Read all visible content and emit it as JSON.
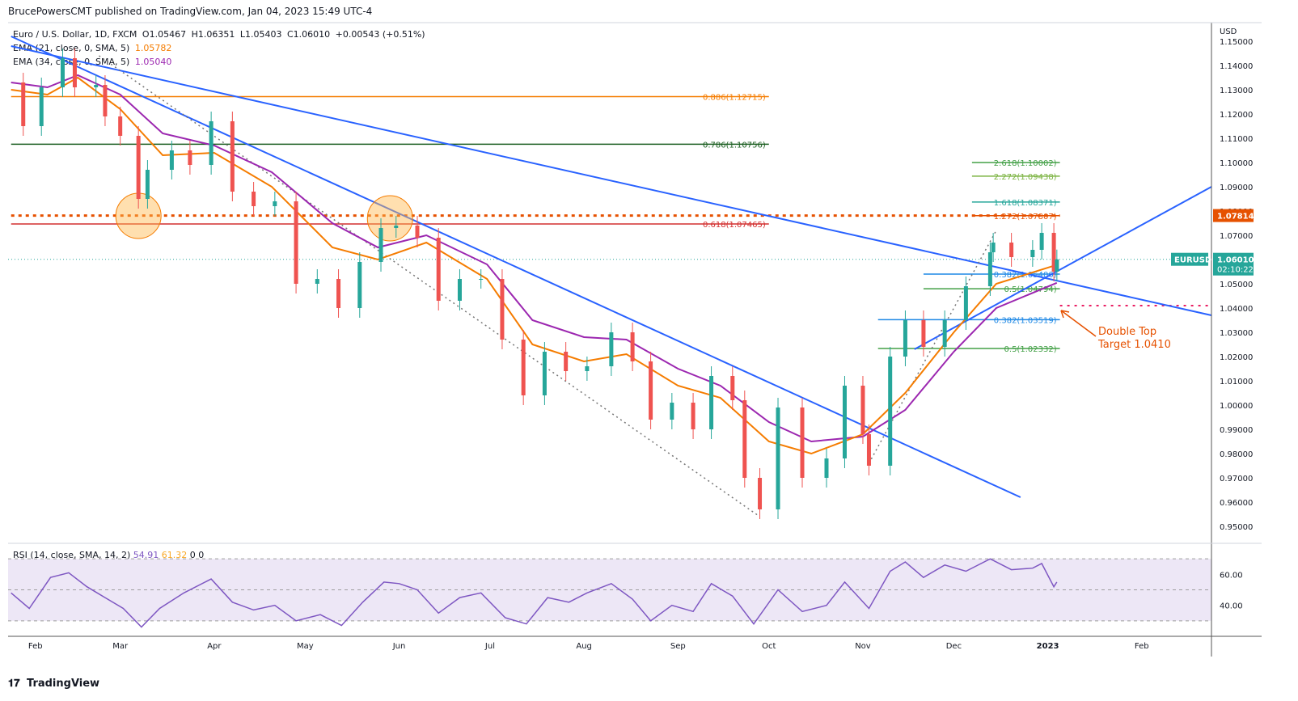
{
  "publisher": "BrucePowersCMT published on TradingView.com, Jan 04, 2023 15:49 UTC-4",
  "brand": "TradingView",
  "brand_logo": "tv-logo-icon",
  "legend": {
    "symbol": "Euro / U.S. Dollar, 1D, FXCM",
    "open": "O1.05467",
    "high": "H1.06351",
    "low": "L1.05403",
    "close": "C1.06010",
    "change": "+0.00543 (+0.51%)",
    "ema1_label": "EMA (21, close, 0, SMA, 5)",
    "ema1_value": "1.05782",
    "ema2_label": "EMA (34, close, 0, SMA, 5)",
    "ema2_value": "1.05040"
  },
  "rsi_legend": {
    "label": "RSI (14, close, SMA, 14, 2)",
    "value1": "54.91",
    "value2": "61.32",
    "value3": "0",
    "value4": "0"
  },
  "colors": {
    "up": "#26a69a",
    "down": "#ef5350",
    "ema21": "#f57c00",
    "ema34": "#9c27b0",
    "trend": "#2962ff",
    "rsi": "#7e57c2",
    "rsi_band": "#ede7f6",
    "price_badge": "#26a69a",
    "level_badge": "#e65100"
  },
  "chart_data": {
    "type": "candlestick",
    "axis_currency": "USD",
    "y_ticks": [
      "1.15000",
      "1.14000",
      "1.13000",
      "1.12000",
      "1.11000",
      "1.10000",
      "1.09000",
      "1.08000",
      "1.07000",
      "1.06000",
      "1.05000",
      "1.04000",
      "1.03000",
      "1.02000",
      "1.01000",
      "1.00000",
      "0.99000",
      "0.98000",
      "0.97000",
      "0.96000",
      "0.95000"
    ],
    "ylim": [
      0.943,
      1.157
    ],
    "x_ticks": [
      "Feb",
      "Mar",
      "Apr",
      "May",
      "Jun",
      "Jul",
      "Aug",
      "Sep",
      "Oct",
      "Nov",
      "Dec",
      "2023",
      "Feb"
    ],
    "x_tick_dates": [
      "2022-02-01",
      "2022-03-01",
      "2022-04-01",
      "2022-05-01",
      "2022-06-01",
      "2022-07-01",
      "2022-08-01",
      "2022-09-01",
      "2022-10-01",
      "2022-11-01",
      "2022-12-01",
      "2023-01-01",
      "2023-02-01"
    ],
    "xlim": [
      "2022-01-23",
      "2023-02-24"
    ],
    "last_price": {
      "symbol": "EURUSD",
      "price": "1.06010",
      "countdown": "02:10:22",
      "value": 1.0601
    },
    "level_badge": {
      "label": "1.07814",
      "value": 1.07814
    },
    "close_path": [
      [
        "2022-01-24",
        1.133
      ],
      [
        "2022-01-28",
        1.115
      ],
      [
        "2022-02-03",
        1.131
      ],
      [
        "2022-02-10",
        1.143
      ],
      [
        "2022-02-14",
        1.131
      ],
      [
        "2022-02-21",
        1.132
      ],
      [
        "2022-02-24",
        1.119
      ],
      [
        "2022-03-01",
        1.111
      ],
      [
        "2022-03-07",
        1.085
      ],
      [
        "2022-03-10",
        1.097
      ],
      [
        "2022-03-18",
        1.105
      ],
      [
        "2022-03-24",
        1.099
      ],
      [
        "2022-03-31",
        1.117
      ],
      [
        "2022-04-07",
        1.088
      ],
      [
        "2022-04-14",
        1.082
      ],
      [
        "2022-04-21",
        1.084
      ],
      [
        "2022-04-28",
        1.05
      ],
      [
        "2022-05-05",
        1.052
      ],
      [
        "2022-05-12",
        1.04
      ],
      [
        "2022-05-19",
        1.059
      ],
      [
        "2022-05-26",
        1.073
      ],
      [
        "2022-05-31",
        1.074
      ],
      [
        "2022-06-07",
        1.069
      ],
      [
        "2022-06-14",
        1.043
      ],
      [
        "2022-06-21",
        1.052
      ],
      [
        "2022-06-28",
        1.052
      ],
      [
        "2022-07-05",
        1.027
      ],
      [
        "2022-07-12",
        1.004
      ],
      [
        "2022-07-19",
        1.022
      ],
      [
        "2022-07-26",
        1.014
      ],
      [
        "2022-08-02",
        1.016
      ],
      [
        "2022-08-10",
        1.03
      ],
      [
        "2022-08-17",
        1.018
      ],
      [
        "2022-08-23",
        0.994
      ],
      [
        "2022-08-30",
        1.001
      ],
      [
        "2022-09-06",
        0.99
      ],
      [
        "2022-09-12",
        1.012
      ],
      [
        "2022-09-19",
        1.002
      ],
      [
        "2022-09-23",
        0.97
      ],
      [
        "2022-09-28",
        0.957
      ],
      [
        "2022-10-04",
        0.999
      ],
      [
        "2022-10-12",
        0.97
      ],
      [
        "2022-10-20",
        0.978
      ],
      [
        "2022-10-26",
        1.008
      ],
      [
        "2022-11-01",
        0.988
      ],
      [
        "2022-11-03",
        0.975
      ],
      [
        "2022-11-10",
        1.02
      ],
      [
        "2022-11-15",
        1.035
      ],
      [
        "2022-11-21",
        1.024
      ],
      [
        "2022-11-28",
        1.035
      ],
      [
        "2022-12-05",
        1.049
      ],
      [
        "2022-12-13",
        1.063
      ],
      [
        "2022-12-14",
        1.067
      ],
      [
        "2022-12-20",
        1.061
      ],
      [
        "2022-12-27",
        1.064
      ],
      [
        "2022-12-30",
        1.071
      ],
      [
        "2023-01-03",
        1.055
      ],
      [
        "2023-01-04",
        1.0601
      ]
    ],
    "ema21_path": [
      [
        "2022-01-24",
        1.13
      ],
      [
        "2022-02-05",
        1.128
      ],
      [
        "2022-02-15",
        1.135
      ],
      [
        "2022-03-01",
        1.122
      ],
      [
        "2022-03-15",
        1.103
      ],
      [
        "2022-04-01",
        1.104
      ],
      [
        "2022-04-20",
        1.09
      ],
      [
        "2022-05-10",
        1.065
      ],
      [
        "2022-05-25",
        1.06
      ],
      [
        "2022-06-10",
        1.067
      ],
      [
        "2022-06-30",
        1.052
      ],
      [
        "2022-07-15",
        1.025
      ],
      [
        "2022-08-01",
        1.018
      ],
      [
        "2022-08-15",
        1.021
      ],
      [
        "2022-09-01",
        1.008
      ],
      [
        "2022-09-15",
        1.003
      ],
      [
        "2022-10-01",
        0.985
      ],
      [
        "2022-10-15",
        0.98
      ],
      [
        "2022-11-01",
        0.988
      ],
      [
        "2022-11-15",
        1.005
      ],
      [
        "2022-12-01",
        1.03
      ],
      [
        "2022-12-15",
        1.05
      ],
      [
        "2023-01-04",
        1.0578
      ]
    ],
    "ema34_path": [
      [
        "2022-01-24",
        1.133
      ],
      [
        "2022-02-05",
        1.131
      ],
      [
        "2022-02-15",
        1.136
      ],
      [
        "2022-03-01",
        1.128
      ],
      [
        "2022-03-15",
        1.112
      ],
      [
        "2022-04-01",
        1.107
      ],
      [
        "2022-04-20",
        1.096
      ],
      [
        "2022-05-10",
        1.075
      ],
      [
        "2022-05-25",
        1.065
      ],
      [
        "2022-06-10",
        1.07
      ],
      [
        "2022-06-30",
        1.058
      ],
      [
        "2022-07-15",
        1.035
      ],
      [
        "2022-08-01",
        1.028
      ],
      [
        "2022-08-15",
        1.027
      ],
      [
        "2022-09-01",
        1.015
      ],
      [
        "2022-09-15",
        1.008
      ],
      [
        "2022-10-01",
        0.993
      ],
      [
        "2022-10-15",
        0.985
      ],
      [
        "2022-11-01",
        0.987
      ],
      [
        "2022-11-15",
        0.998
      ],
      [
        "2022-12-01",
        1.022
      ],
      [
        "2022-12-15",
        1.04
      ],
      [
        "2023-01-04",
        1.0504
      ]
    ],
    "horizontal_levels": [
      {
        "label": "0.886(1.12715)",
        "value": 1.12715,
        "from": "2022-01-24",
        "to": "2022-10-01",
        "color": "#f57c00"
      },
      {
        "label": "0.786(1.10756)",
        "value": 1.10756,
        "from": "2022-01-24",
        "to": "2022-10-01",
        "color": "#1b5e20"
      },
      {
        "label": "0.618(1.07465)",
        "value": 1.07465,
        "from": "2022-01-24",
        "to": "2022-10-01",
        "color": "#d32f2f"
      },
      {
        "label": "2.618(1.10002)",
        "value": 1.10002,
        "from": "2022-12-07",
        "to": "2023-01-05",
        "color": "#43a047"
      },
      {
        "label": "2.272(1.09438)",
        "value": 1.09438,
        "from": "2022-12-07",
        "to": "2023-01-05",
        "color": "#7cb342"
      },
      {
        "label": "1.618(1.08371)",
        "value": 1.08371,
        "from": "2022-12-07",
        "to": "2023-01-05",
        "color": "#26a69a"
      },
      {
        "label": "1.272(1.07807)",
        "value": 1.07807,
        "from": "2022-12-07",
        "to": "2023-01-05",
        "color": "#e65100"
      },
      {
        "label": "0.382(1.05400)",
        "value": 1.054,
        "from": "2022-11-21",
        "to": "2023-01-05",
        "color": "#1e88e5"
      },
      {
        "label": "0.5(1.04794)",
        "value": 1.04794,
        "from": "2022-11-21",
        "to": "2023-01-05",
        "color": "#43a047"
      },
      {
        "label": "0.382(1.03519)",
        "value": 1.03519,
        "from": "2022-11-06",
        "to": "2023-01-05",
        "color": "#1e88e5"
      },
      {
        "label": "0.5(1.02332)",
        "value": 1.02332,
        "from": "2022-11-06",
        "to": "2023-01-05",
        "color": "#43a047"
      }
    ],
    "dotted_level": {
      "value": 1.07814,
      "from": "2022-01-24",
      "to": "2023-01-05",
      "color": "#e65100"
    },
    "target_line": {
      "value": 1.041,
      "from": "2023-01-05",
      "to": "2023-02-24",
      "color": "#e91e63"
    },
    "trendlines": [
      {
        "from": [
          "2022-01-24",
          1.148
        ],
        "to": [
          "2023-02-24",
          1.037
        ]
      },
      {
        "from": [
          "2022-01-24",
          1.152
        ],
        "to": [
          "2022-12-23",
          0.962
        ]
      },
      {
        "from": [
          "2022-11-18",
          1.023
        ],
        "to": [
          "2023-02-24",
          1.09
        ]
      }
    ],
    "dotted_trend": [
      {
        "from": [
          "2022-02-22",
          1.144
        ],
        "to": [
          "2022-09-28",
          0.954
        ]
      },
      {
        "from": [
          "2022-11-03",
          0.976
        ],
        "to": [
          "2022-12-15",
          1.072
        ]
      }
    ],
    "circles": [
      {
        "date": "2022-03-07",
        "value": 1.078
      },
      {
        "date": "2022-05-29",
        "value": 1.077
      }
    ],
    "annotation": {
      "line1": "Double Top",
      "line2": "Target 1.0410",
      "color": "#e65100"
    },
    "rsi": {
      "y_ticks": [
        "60.00",
        "40.00"
      ],
      "ylim": [
        20,
        80
      ],
      "band": [
        30,
        70
      ],
      "mid": 50,
      "path": [
        [
          "2022-01-24",
          48
        ],
        [
          "2022-01-30",
          38
        ],
        [
          "2022-02-06",
          58
        ],
        [
          "2022-02-12",
          61
        ],
        [
          "2022-02-18",
          52
        ],
        [
          "2022-02-24",
          45
        ],
        [
          "2022-03-02",
          38
        ],
        [
          "2022-03-08",
          26
        ],
        [
          "2022-03-14",
          38
        ],
        [
          "2022-03-22",
          48
        ],
        [
          "2022-03-31",
          57
        ],
        [
          "2022-04-07",
          42
        ],
        [
          "2022-04-14",
          37
        ],
        [
          "2022-04-21",
          40
        ],
        [
          "2022-04-28",
          30
        ],
        [
          "2022-05-06",
          34
        ],
        [
          "2022-05-13",
          27
        ],
        [
          "2022-05-20",
          42
        ],
        [
          "2022-05-27",
          55
        ],
        [
          "2022-06-01",
          54
        ],
        [
          "2022-06-07",
          50
        ],
        [
          "2022-06-14",
          35
        ],
        [
          "2022-06-21",
          45
        ],
        [
          "2022-06-28",
          48
        ],
        [
          "2022-07-06",
          32
        ],
        [
          "2022-07-13",
          28
        ],
        [
          "2022-07-20",
          45
        ],
        [
          "2022-07-27",
          42
        ],
        [
          "2022-08-02",
          48
        ],
        [
          "2022-08-10",
          54
        ],
        [
          "2022-08-17",
          44
        ],
        [
          "2022-08-23",
          30
        ],
        [
          "2022-08-30",
          40
        ],
        [
          "2022-09-06",
          36
        ],
        [
          "2022-09-12",
          54
        ],
        [
          "2022-09-19",
          46
        ],
        [
          "2022-09-26",
          28
        ],
        [
          "2022-10-04",
          50
        ],
        [
          "2022-10-12",
          36
        ],
        [
          "2022-10-20",
          40
        ],
        [
          "2022-10-26",
          55
        ],
        [
          "2022-11-03",
          38
        ],
        [
          "2022-11-10",
          62
        ],
        [
          "2022-11-15",
          68
        ],
        [
          "2022-11-21",
          58
        ],
        [
          "2022-11-28",
          66
        ],
        [
          "2022-12-05",
          62
        ],
        [
          "2022-12-13",
          70
        ],
        [
          "2022-12-20",
          63
        ],
        [
          "2022-12-27",
          64
        ],
        [
          "2022-12-30",
          67
        ],
        [
          "2023-01-03",
          52
        ],
        [
          "2023-01-04",
          55
        ]
      ]
    }
  }
}
